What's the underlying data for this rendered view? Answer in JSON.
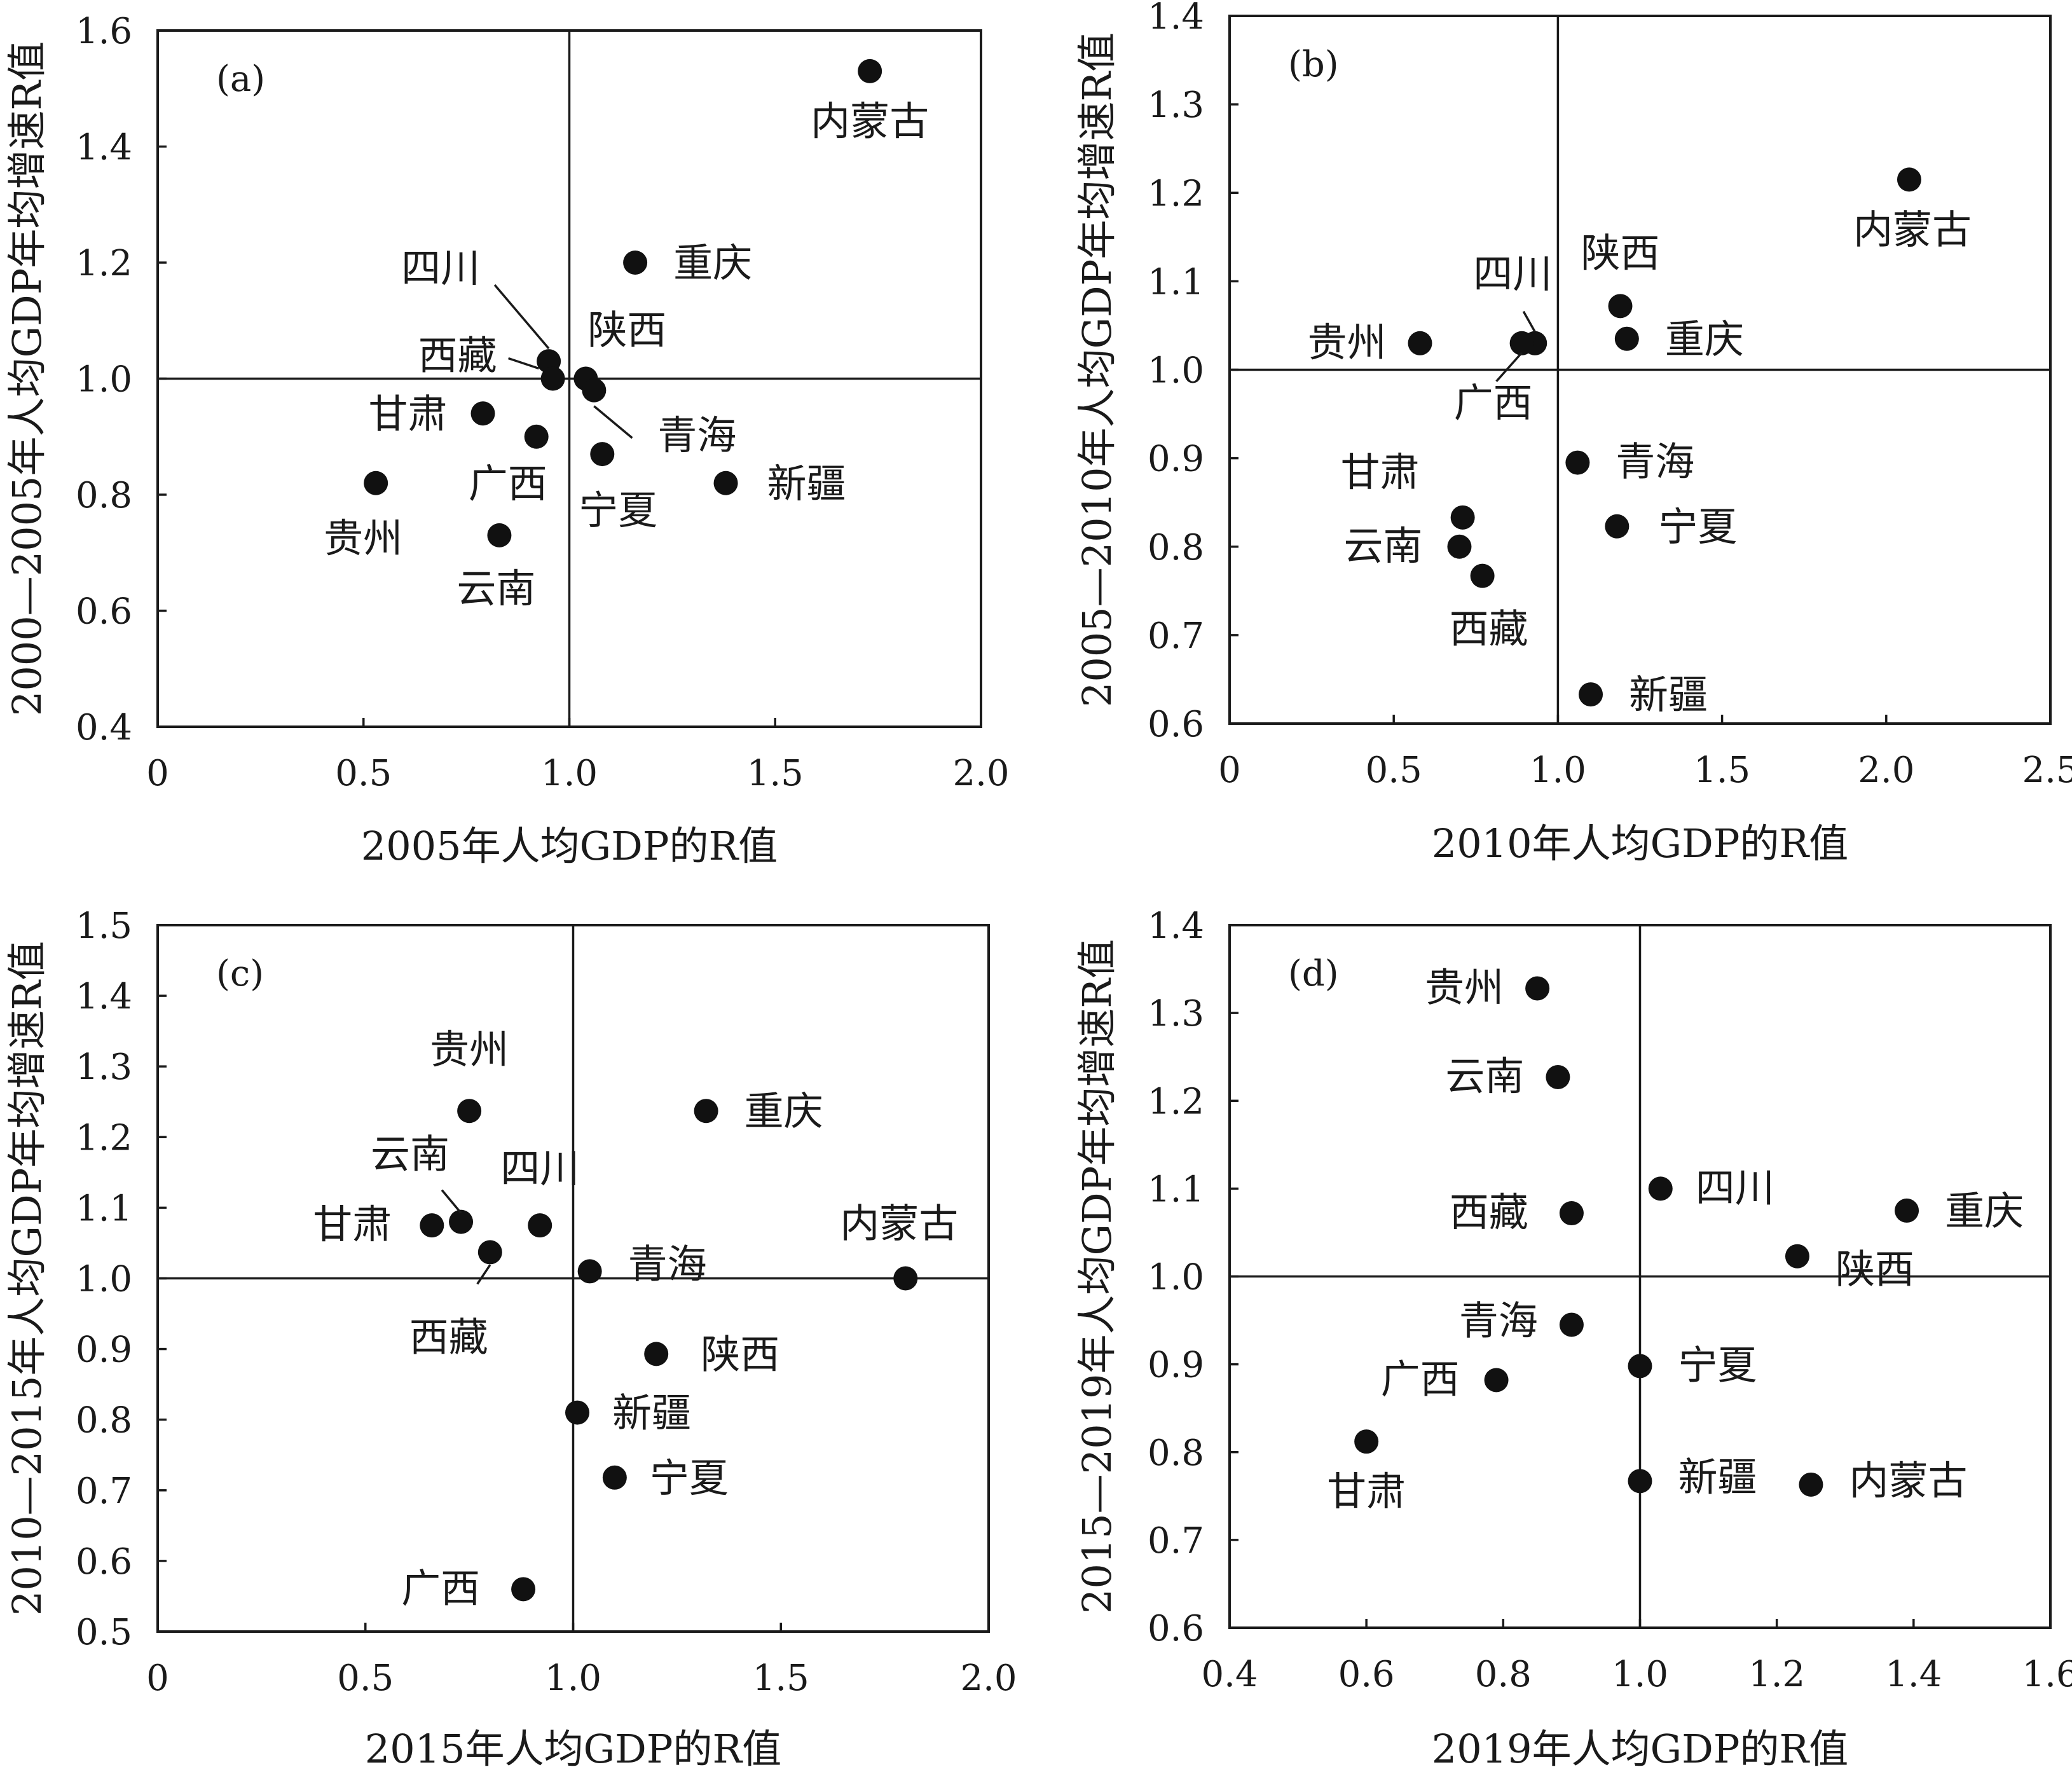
{
  "chart_data": [
    {
      "type": "scatter",
      "panel_label": "(a)",
      "xlabel": "2005年人均GDP的R值",
      "ylabel": "2000—2005年人均GDP年均增速R值",
      "xlim": [
        0,
        2.0
      ],
      "ylim": [
        0.4,
        1.6
      ],
      "x_ticks": [
        "0",
        "0.5",
        "1.0",
        "1.5",
        "2.0"
      ],
      "y_ticks": [
        "0.4",
        "0.6",
        "0.8",
        "1.0",
        "1.2",
        "1.4",
        "1.6"
      ],
      "reference_lines": {
        "x": 1.0,
        "y": 1.0
      },
      "points": [
        {
          "label": "内蒙古",
          "x": 1.73,
          "y": 1.53
        },
        {
          "label": "重庆",
          "x": 1.16,
          "y": 1.2
        },
        {
          "label": "四川",
          "x": 0.95,
          "y": 1.03
        },
        {
          "label": "西藏",
          "x": 0.96,
          "y": 1.0
        },
        {
          "label": "陕西",
          "x": 1.04,
          "y": 1.0
        },
        {
          "label": "青海",
          "x": 1.06,
          "y": 0.98
        },
        {
          "label": "甘肃",
          "x": 0.79,
          "y": 0.94
        },
        {
          "label": "广西",
          "x": 0.92,
          "y": 0.9
        },
        {
          "label": "宁夏",
          "x": 1.08,
          "y": 0.87
        },
        {
          "label": "新疆",
          "x": 1.38,
          "y": 0.82
        },
        {
          "label": "贵州",
          "x": 0.53,
          "y": 0.82
        },
        {
          "label": "云南",
          "x": 0.83,
          "y": 0.73
        }
      ]
    },
    {
      "type": "scatter",
      "panel_label": "(b)",
      "xlabel": "2010年人均GDP的R值",
      "ylabel": "2005—2010年人均GDP年均增速R值",
      "xlim": [
        0,
        2.5
      ],
      "ylim": [
        0.6,
        1.4
      ],
      "x_ticks": [
        "0",
        "0.5",
        "1.0",
        "1.5",
        "2.0",
        "2.5"
      ],
      "y_ticks": [
        "0.6",
        "0.7",
        "0.8",
        "0.9",
        "1.0",
        "1.1",
        "1.2",
        "1.3",
        "1.4"
      ],
      "reference_lines": {
        "x": 1.0,
        "y": 1.0
      },
      "points": [
        {
          "label": "内蒙古",
          "x": 2.07,
          "y": 1.215
        },
        {
          "label": "陕西",
          "x": 1.19,
          "y": 1.072
        },
        {
          "label": "重庆",
          "x": 1.21,
          "y": 1.035
        },
        {
          "label": "四川",
          "x": 0.93,
          "y": 1.03
        },
        {
          "label": "广西",
          "x": 0.89,
          "y": 1.03
        },
        {
          "label": "贵州",
          "x": 0.58,
          "y": 1.03
        },
        {
          "label": "青海",
          "x": 1.06,
          "y": 0.895
        },
        {
          "label": "甘肃",
          "x": 0.71,
          "y": 0.833
        },
        {
          "label": "宁夏",
          "x": 1.18,
          "y": 0.823
        },
        {
          "label": "云南",
          "x": 0.7,
          "y": 0.8
        },
        {
          "label": "西藏",
          "x": 0.77,
          "y": 0.767
        },
        {
          "label": "新疆",
          "x": 1.1,
          "y": 0.633
        }
      ]
    },
    {
      "type": "scatter",
      "panel_label": "(c)",
      "xlabel": "2015年人均GDP的R值",
      "ylabel": "2010—2015年人均GDP年均增速R值",
      "xlim": [
        0,
        2.0
      ],
      "ylim": [
        0.5,
        1.5
      ],
      "x_ticks": [
        "0",
        "0.5",
        "1.0",
        "1.5",
        "2.0"
      ],
      "y_ticks": [
        "0.5",
        "0.6",
        "0.7",
        "0.8",
        "0.9",
        "1.0",
        "1.1",
        "1.2",
        "1.3",
        "1.4",
        "1.5"
      ],
      "reference_lines": {
        "x": 1.0,
        "y": 1.0
      },
      "points": [
        {
          "label": "贵州",
          "x": 0.75,
          "y": 1.237
        },
        {
          "label": "重庆",
          "x": 1.32,
          "y": 1.237
        },
        {
          "label": "云南",
          "x": 0.73,
          "y": 1.08
        },
        {
          "label": "甘肃",
          "x": 0.66,
          "y": 1.075
        },
        {
          "label": "四川",
          "x": 0.92,
          "y": 1.075
        },
        {
          "label": "西藏",
          "x": 0.8,
          "y": 1.037
        },
        {
          "label": "青海",
          "x": 1.04,
          "y": 1.01
        },
        {
          "label": "内蒙古",
          "x": 1.8,
          "y": 1.0
        },
        {
          "label": "陕西",
          "x": 1.2,
          "y": 0.893
        },
        {
          "label": "新疆",
          "x": 1.01,
          "y": 0.81
        },
        {
          "label": "宁夏",
          "x": 1.1,
          "y": 0.718
        },
        {
          "label": "广西",
          "x": 0.88,
          "y": 0.56
        }
      ]
    },
    {
      "type": "scatter",
      "panel_label": "(d)",
      "xlabel": "2019年人均GDP的R值",
      "ylabel": "2015—2019年人均GDP年均增速R值",
      "xlim": [
        0.4,
        1.6
      ],
      "ylim": [
        0.6,
        1.4
      ],
      "x_ticks": [
        "0.4",
        "0.6",
        "0.8",
        "1.0",
        "1.2",
        "1.4",
        "1.6"
      ],
      "y_ticks": [
        "0.6",
        "0.7",
        "0.8",
        "0.9",
        "1.0",
        "1.1",
        "1.2",
        "1.3",
        "1.4"
      ],
      "reference_lines": {
        "x": 1.0,
        "y": 1.0
      },
      "points": [
        {
          "label": "贵州",
          "x": 0.85,
          "y": 1.328
        },
        {
          "label": "云南",
          "x": 0.88,
          "y": 1.227
        },
        {
          "label": "四川",
          "x": 1.03,
          "y": 1.1
        },
        {
          "label": "西藏",
          "x": 0.9,
          "y": 1.072
        },
        {
          "label": "重庆",
          "x": 1.39,
          "y": 1.075
        },
        {
          "label": "陕西",
          "x": 1.23,
          "y": 1.023
        },
        {
          "label": "青海",
          "x": 0.9,
          "y": 0.945
        },
        {
          "label": "宁夏",
          "x": 1.0,
          "y": 0.898
        },
        {
          "label": "广西",
          "x": 0.79,
          "y": 0.882
        },
        {
          "label": "甘肃",
          "x": 0.6,
          "y": 0.812
        },
        {
          "label": "新疆",
          "x": 1.0,
          "y": 0.767
        },
        {
          "label": "内蒙古",
          "x": 1.25,
          "y": 0.763
        }
      ]
    }
  ]
}
